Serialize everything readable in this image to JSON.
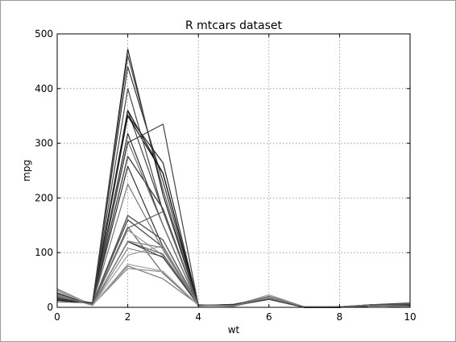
{
  "chart_data": {
    "type": "line",
    "title": "R mtcars dataset",
    "xlabel": "wt",
    "ylabel": "mpg",
    "xlim": [
      0,
      10
    ],
    "ylim": [
      0,
      500
    ],
    "xticks": [
      0,
      2,
      4,
      6,
      8,
      10
    ],
    "yticks": [
      0,
      100,
      200,
      300,
      400,
      500
    ],
    "grid": true,
    "legend": "none",
    "x": [
      0,
      1,
      2,
      3,
      4,
      5,
      6,
      7,
      8,
      9,
      10
    ],
    "series": [
      {
        "color": "#222222",
        "values": [
          21.0,
          6,
          160,
          110,
          3.9,
          2.62,
          16.5,
          0,
          1,
          4,
          4
        ]
      },
      {
        "color": "#555555",
        "values": [
          21.0,
          6,
          160,
          110,
          3.9,
          2.875,
          17.0,
          0,
          1,
          4,
          4
        ]
      },
      {
        "color": "#888888",
        "values": [
          22.8,
          4,
          108,
          93,
          3.85,
          2.32,
          18.6,
          1,
          1,
          4,
          1
        ]
      },
      {
        "color": "#333333",
        "values": [
          21.4,
          6,
          258,
          110,
          3.08,
          3.215,
          19.4,
          1,
          0,
          3,
          1
        ]
      },
      {
        "color": "#444444",
        "values": [
          18.7,
          8,
          360,
          175,
          3.15,
          3.44,
          17.0,
          0,
          0,
          3,
          2
        ]
      },
      {
        "color": "#777777",
        "values": [
          18.1,
          6,
          225,
          105,
          2.76,
          3.46,
          20.2,
          1,
          0,
          3,
          1
        ]
      },
      {
        "color": "#111111",
        "values": [
          14.3,
          8,
          360,
          245,
          3.21,
          3.57,
          15.8,
          0,
          0,
          3,
          4
        ]
      },
      {
        "color": "#666666",
        "values": [
          24.4,
          4,
          147,
          62,
          3.69,
          3.19,
          20.0,
          1,
          0,
          4,
          2
        ]
      },
      {
        "color": "#999999",
        "values": [
          22.8,
          4,
          141,
          95,
          3.92,
          3.15,
          22.9,
          1,
          0,
          4,
          2
        ]
      },
      {
        "color": "#3a3a3a",
        "values": [
          19.2,
          6,
          168,
          123,
          3.92,
          3.44,
          18.3,
          1,
          0,
          4,
          4
        ]
      },
      {
        "color": "#5a5a5a",
        "values": [
          17.8,
          6,
          168,
          123,
          3.92,
          3.44,
          18.9,
          1,
          0,
          4,
          4
        ]
      },
      {
        "color": "#2a2a2a",
        "values": [
          16.4,
          8,
          276,
          180,
          3.07,
          4.07,
          17.4,
          0,
          0,
          3,
          3
        ]
      },
      {
        "color": "#6a6a6a",
        "values": [
          17.3,
          8,
          276,
          180,
          3.07,
          3.73,
          17.6,
          0,
          0,
          3,
          3
        ]
      },
      {
        "color": "#4a4a4a",
        "values": [
          15.2,
          8,
          276,
          180,
          3.07,
          3.78,
          18.0,
          0,
          0,
          3,
          3
        ]
      },
      {
        "color": "#1e1e1e",
        "values": [
          10.4,
          8,
          472,
          205,
          2.93,
          5.25,
          17.98,
          0,
          0,
          3,
          4
        ]
      },
      {
        "color": "#505050",
        "values": [
          10.4,
          8,
          460,
          215,
          3.0,
          5.424,
          17.82,
          0,
          0,
          3,
          4
        ]
      },
      {
        "color": "#383838",
        "values": [
          14.7,
          8,
          440,
          230,
          3.23,
          5.345,
          17.42,
          0,
          0,
          3,
          4
        ]
      },
      {
        "color": "#aaaaaa",
        "values": [
          32.4,
          4,
          78.7,
          66,
          4.08,
          2.2,
          19.47,
          1,
          1,
          4,
          1
        ]
      },
      {
        "color": "#7a7a7a",
        "values": [
          30.4,
          4,
          75.7,
          52,
          4.93,
          1.615,
          18.52,
          1,
          1,
          4,
          2
        ]
      },
      {
        "color": "#8a8a8a",
        "values": [
          33.9,
          4,
          71.1,
          65,
          4.22,
          1.835,
          19.9,
          1,
          1,
          4,
          1
        ]
      },
      {
        "color": "#5e5e5e",
        "values": [
          21.5,
          4,
          120.1,
          97,
          3.7,
          2.465,
          20.01,
          1,
          0,
          3,
          1
        ]
      },
      {
        "color": "#2e2e2e",
        "values": [
          15.5,
          8,
          318,
          150,
          2.76,
          3.52,
          16.87,
          0,
          0,
          3,
          2
        ]
      },
      {
        "color": "#6e6e6e",
        "values": [
          15.2,
          8,
          304,
          150,
          3.15,
          3.435,
          17.3,
          0,
          0,
          3,
          2
        ]
      },
      {
        "color": "#0f0f0f",
        "values": [
          13.3,
          8,
          350,
          245,
          3.73,
          3.84,
          15.41,
          0,
          0,
          3,
          4
        ]
      },
      {
        "color": "#474747",
        "values": [
          19.2,
          8,
          400,
          175,
          3.08,
          3.845,
          17.05,
          0,
          0,
          3,
          2
        ]
      },
      {
        "color": "#b0b0b0",
        "values": [
          27.3,
          4,
          79,
          66,
          4.08,
          1.935,
          18.9,
          1,
          1,
          4,
          1
        ]
      },
      {
        "color": "#3e3e3e",
        "values": [
          26.0,
          4,
          120.3,
          91,
          4.43,
          2.14,
          16.7,
          0,
          1,
          5,
          2
        ]
      },
      {
        "color": "#9e9e9e",
        "values": [
          30.4,
          4,
          95.1,
          113,
          3.77,
          1.513,
          16.9,
          1,
          1,
          5,
          2
        ]
      },
      {
        "color": "#262626",
        "values": [
          15.8,
          8,
          351,
          264,
          4.22,
          3.17,
          14.5,
          0,
          1,
          5,
          4
        ]
      },
      {
        "color": "#626262",
        "values": [
          19.7,
          6,
          145,
          175,
          3.62,
          2.77,
          15.5,
          0,
          1,
          5,
          6
        ]
      },
      {
        "color": "#424242",
        "values": [
          15.0,
          8,
          301,
          335,
          3.54,
          3.57,
          14.6,
          0,
          1,
          5,
          8
        ]
      },
      {
        "color": "#808080",
        "values": [
          21.4,
          4,
          121,
          109,
          4.11,
          2.78,
          18.6,
          1,
          1,
          4,
          2
        ]
      }
    ]
  }
}
